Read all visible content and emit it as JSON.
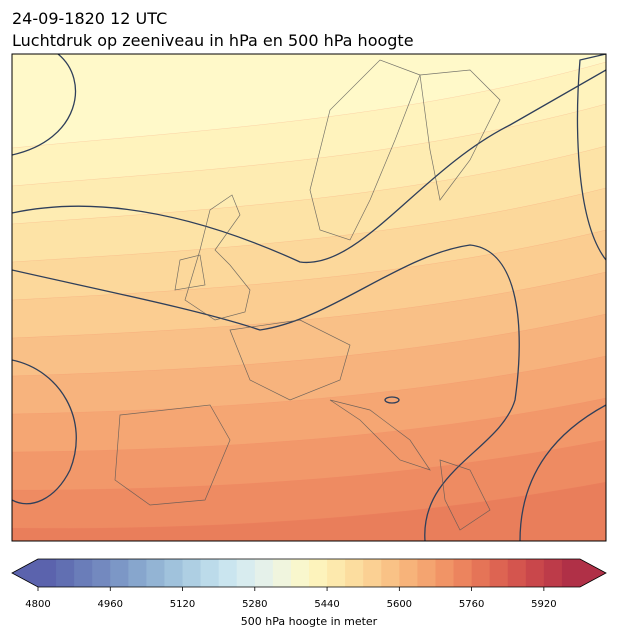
{
  "header": {
    "title": "24-09-1820 12 UTC",
    "subtitle": "Luchtdruk op zeeniveau in hPa en 500 hPa hoogte"
  },
  "colorbar": {
    "label": "500 hPa hoogte in meter",
    "lim": [
      4800,
      6000
    ],
    "ticks": [
      4800,
      4960,
      5120,
      5280,
      5440,
      5600,
      5760,
      5920
    ],
    "colors": [
      "#5b63ad",
      "#616fb2",
      "#6a7db9",
      "#7389bf",
      "#7c97c6",
      "#87a6cd",
      "#93b4d4",
      "#a0c2dc",
      "#aecfe3",
      "#bcdbea",
      "#cae5ef",
      "#d8ecef",
      "#e5f1ea",
      "#f0f5de",
      "#f9f7cd",
      "#fdf3bc",
      "#fde9ad",
      "#fcdd9f",
      "#fbd093",
      "#f9c286",
      "#f7b37a",
      "#f4a470",
      "#f19466",
      "#ec845e",
      "#e57457",
      "#dd6452",
      "#d4554e",
      "#c9474b",
      "#bd3b49",
      "#b03047"
    ]
  }
}
